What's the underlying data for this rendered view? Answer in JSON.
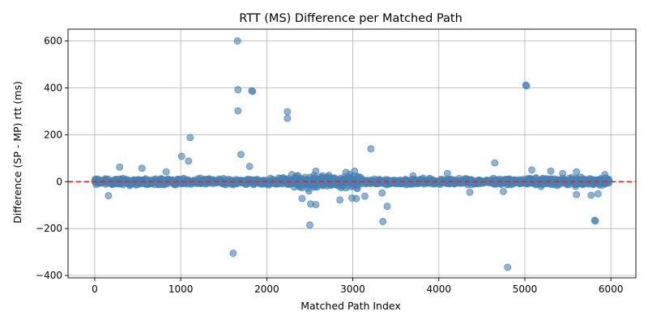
{
  "chart_data": {
    "type": "scatter",
    "title": "RTT (MS) Difference per Matched Path",
    "xlabel": "Matched Path Index",
    "ylabel": "Difference (SP - MP) rtt (ms)",
    "xlim": [
      -310,
      6290
    ],
    "ylim": [
      -410,
      650
    ],
    "xticks": [
      0,
      1000,
      2000,
      3000,
      4000,
      5000,
      6000
    ],
    "yticks": [
      -400,
      -200,
      0,
      200,
      400,
      600
    ],
    "grid": true,
    "legend": "none",
    "point_color": "#4682b4",
    "reference_line": {
      "y": 0,
      "style": "dashed",
      "color": "#d62728"
    },
    "outliers": [
      {
        "x": 1660,
        "y": 600
      },
      {
        "x": 1665,
        "y": 392
      },
      {
        "x": 1665,
        "y": 302
      },
      {
        "x": 1825,
        "y": 388
      },
      {
        "x": 1835,
        "y": 385
      },
      {
        "x": 2240,
        "y": 298
      },
      {
        "x": 2240,
        "y": 270
      },
      {
        "x": 5010,
        "y": 412
      },
      {
        "x": 5020,
        "y": 408
      },
      {
        "x": 1110,
        "y": 188
      },
      {
        "x": 1010,
        "y": 108
      },
      {
        "x": 1700,
        "y": 116
      },
      {
        "x": 3210,
        "y": 140
      },
      {
        "x": 1800,
        "y": 65
      },
      {
        "x": 4650,
        "y": 80
      },
      {
        "x": 290,
        "y": 62
      },
      {
        "x": 550,
        "y": 57
      },
      {
        "x": 1090,
        "y": 88
      },
      {
        "x": 830,
        "y": 42
      },
      {
        "x": 3020,
        "y": 45
      },
      {
        "x": 5080,
        "y": 50
      },
      {
        "x": 1610,
        "y": -305
      },
      {
        "x": 4800,
        "y": -365
      },
      {
        "x": 2500,
        "y": -185
      },
      {
        "x": 3350,
        "y": -170
      },
      {
        "x": 5810,
        "y": -165
      },
      {
        "x": 5820,
        "y": -168
      },
      {
        "x": 3400,
        "y": -105
      },
      {
        "x": 2510,
        "y": -95
      },
      {
        "x": 2570,
        "y": -98
      },
      {
        "x": 2410,
        "y": -72
      },
      {
        "x": 2850,
        "y": -78
      },
      {
        "x": 3140,
        "y": -62
      },
      {
        "x": 3040,
        "y": -72
      },
      {
        "x": 160,
        "y": -60
      },
      {
        "x": 5600,
        "y": -55
      },
      {
        "x": 5770,
        "y": -58
      },
      {
        "x": 5850,
        "y": -52
      },
      {
        "x": 4750,
        "y": -42
      },
      {
        "x": 4360,
        "y": -45
      },
      {
        "x": 3340,
        "y": -48
      },
      {
        "x": 2490,
        "y": -40
      },
      {
        "x": 2990,
        "y": -70
      },
      {
        "x": 2290,
        "y": 30
      },
      {
        "x": 2570,
        "y": 45
      },
      {
        "x": 2920,
        "y": 40
      },
      {
        "x": 3700,
        "y": 25
      },
      {
        "x": 4100,
        "y": 35
      },
      {
        "x": 5300,
        "y": 45
      },
      {
        "x": 5440,
        "y": 35
      },
      {
        "x": 5930,
        "y": 30
      },
      {
        "x": 5600,
        "y": 42
      }
    ],
    "dense_band": {
      "x_start": 0,
      "x_end": 5980,
      "count": 1500,
      "seed": 7,
      "segments": [
        {
          "x": [
            0,
            1000
          ],
          "spread": 18
        },
        {
          "x": [
            1000,
            2000
          ],
          "spread": 16
        },
        {
          "x": [
            2000,
            2300
          ],
          "spread": 22
        },
        {
          "x": [
            2300,
            3100
          ],
          "spread": 38
        },
        {
          "x": [
            3100,
            4000
          ],
          "spread": 17
        },
        {
          "x": [
            4000,
            5000
          ],
          "spread": 16
        },
        {
          "x": [
            5000,
            5980
          ],
          "spread": 22
        }
      ]
    }
  }
}
